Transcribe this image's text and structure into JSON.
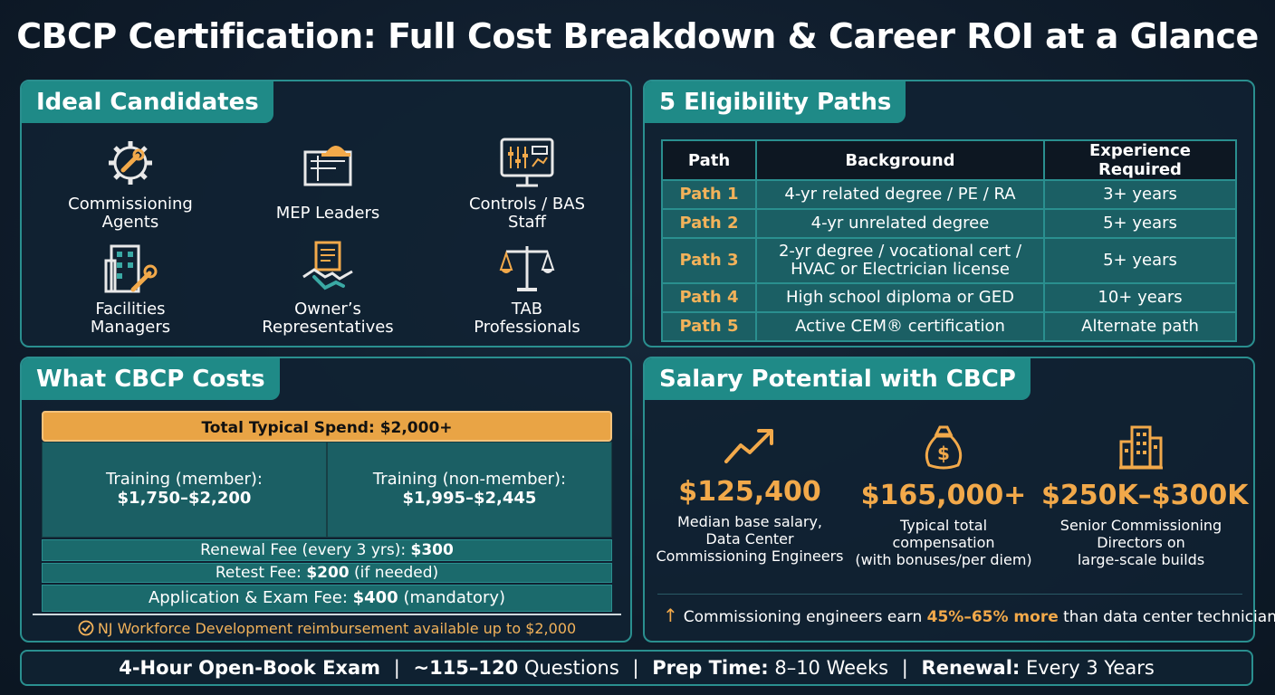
{
  "title": "CBCP Certification: Full Cost Breakdown & Career ROI at a Glance",
  "candidates": {
    "heading": "Ideal Candidates",
    "items": [
      {
        "label": "Commissioning\nAgents",
        "icon": "gear-wrench-icon"
      },
      {
        "label": "MEP Leaders",
        "icon": "blueprint-hardhat-icon"
      },
      {
        "label": "Controls / BAS\nStaff",
        "icon": "monitor-controls-icon"
      },
      {
        "label": "Facilities\nManagers",
        "icon": "building-wrench-icon"
      },
      {
        "label": "Owner’s\nRepresentatives",
        "icon": "handshake-document-icon"
      },
      {
        "label": "TAB\nProfessionals",
        "icon": "balance-scale-icon"
      }
    ]
  },
  "eligibility": {
    "heading": "5 Eligibility Paths",
    "columns": [
      "Path",
      "Background",
      "Experience Required"
    ],
    "rows": [
      {
        "path": "Path 1",
        "background": "4-yr related degree / PE / RA",
        "experience": "3+ years"
      },
      {
        "path": "Path 2",
        "background": "4-yr unrelated degree",
        "experience": "5+ years"
      },
      {
        "path": "Path 3",
        "background": "2-yr degree / vocational cert / HVAC or Electrician license",
        "experience": "5+ years"
      },
      {
        "path": "Path 4",
        "background": "High school diploma or GED",
        "experience": "10+ years"
      },
      {
        "path": "Path 5",
        "background": "Active CEM® certification",
        "experience": "Alternate path"
      }
    ]
  },
  "costs": {
    "heading": "What CBCP Costs",
    "total": "Total Typical Spend: $2,000+",
    "training_member_label": "Training (member):",
    "training_member_value": "$1,750–$2,200",
    "training_nonmember_label": "Training (non-member):",
    "training_nonmember_value": "$1,995–$2,445",
    "renewal_label": "Renewal Fee (every 3 yrs): ",
    "renewal_value": "$300",
    "retest_label": "Retest Fee: ",
    "retest_value": "$200",
    "retest_suffix": " (if needed)",
    "application_label": "Application & Exam Fee: ",
    "application_value": "$400",
    "application_suffix": " (mandatory)",
    "note": "NJ Workforce Development reimbursement available up to $2,000"
  },
  "salary": {
    "heading": "Salary Potential with CBCP",
    "items": [
      {
        "value": "$125,400",
        "desc": "Median base salary,\nData Center\nCommissioning Engineers",
        "icon": "trend-up-icon"
      },
      {
        "value": "$165,000+",
        "desc": "Typical total\ncompensation\n(with bonuses/per diem)",
        "icon": "money-bag-icon"
      },
      {
        "value": "$250K–$300K",
        "desc": "Senior Commissioning\nDirectors on\nlarge-scale builds",
        "icon": "skyscraper-icon"
      }
    ],
    "note_prefix": "Commissioning engineers earn ",
    "note_highlight": "45%–65% more",
    "note_suffix": " than data center technicians"
  },
  "footer": {
    "exam_label": "4-Hour Open-Book Exam",
    "questions_prefix": "~115–120",
    "questions_suffix": " Questions",
    "prep_label": "Prep Time:",
    "prep_value": " 8–10 Weeks",
    "renewal_label": "Renewal:",
    "renewal_value": " Every 3 Years",
    "separator": "|"
  },
  "colors": {
    "accent": "#1f8a87",
    "highlight": "#f2a94a",
    "background": "#0f1c2b"
  }
}
